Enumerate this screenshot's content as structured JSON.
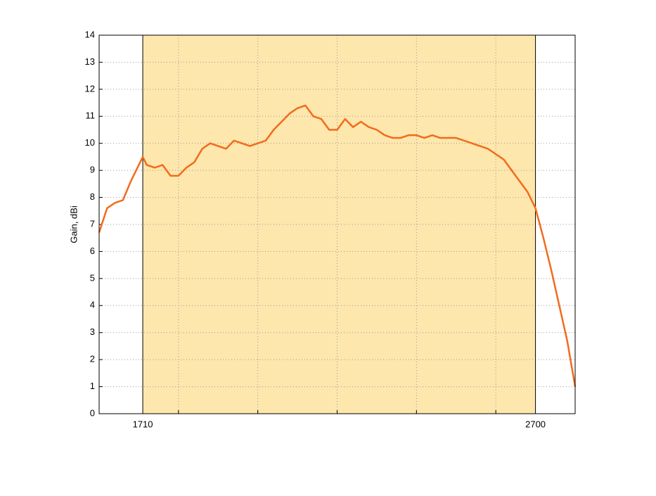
{
  "chart_data": {
    "type": "line",
    "y_label": "Gain, dBi",
    "x": [
      1600,
      1620,
      1640,
      1660,
      1680,
      1700,
      1710,
      1720,
      1740,
      1760,
      1780,
      1800,
      1820,
      1840,
      1860,
      1880,
      1900,
      1920,
      1940,
      1960,
      1980,
      2000,
      2020,
      2040,
      2060,
      2080,
      2100,
      2120,
      2140,
      2160,
      2180,
      2200,
      2220,
      2240,
      2260,
      2280,
      2300,
      2320,
      2340,
      2360,
      2380,
      2400,
      2420,
      2440,
      2460,
      2480,
      2500,
      2520,
      2540,
      2560,
      2580,
      2600,
      2620,
      2640,
      2660,
      2680,
      2700,
      2720,
      2740,
      2760,
      2780,
      2800
    ],
    "series": [
      {
        "color": "#f26b1d",
        "values": [
          6.7,
          7.6,
          7.8,
          7.9,
          8.6,
          9.2,
          9.5,
          9.2,
          9.1,
          9.2,
          8.8,
          8.8,
          9.1,
          9.3,
          9.8,
          10.0,
          9.9,
          9.8,
          10.1,
          10.0,
          9.9,
          10.0,
          10.1,
          10.5,
          10.8,
          11.1,
          11.3,
          11.4,
          11.0,
          10.9,
          10.5,
          10.5,
          10.9,
          10.6,
          10.8,
          10.6,
          10.5,
          10.3,
          10.2,
          10.2,
          10.3,
          10.3,
          10.2,
          10.3,
          10.2,
          10.2,
          10.2,
          10.1,
          10.0,
          9.9,
          9.8,
          9.6,
          9.4,
          9.0,
          8.6,
          8.2,
          7.6,
          6.5,
          5.3,
          4.0,
          2.7,
          1.0
        ]
      }
    ],
    "xlim": [
      1600,
      2800
    ],
    "xticks": [
      1710,
      2700
    ],
    "xgrid": [
      1800,
      2000,
      2200,
      2400,
      2600
    ],
    "ylim": [
      0,
      14
    ],
    "yticks": [
      0,
      1,
      2,
      3,
      4,
      5,
      6,
      7,
      8,
      9,
      10,
      11,
      12,
      13,
      14
    ],
    "grid": true,
    "band": [
      1710,
      2700
    ],
    "band_color": "#fde7ad"
  }
}
